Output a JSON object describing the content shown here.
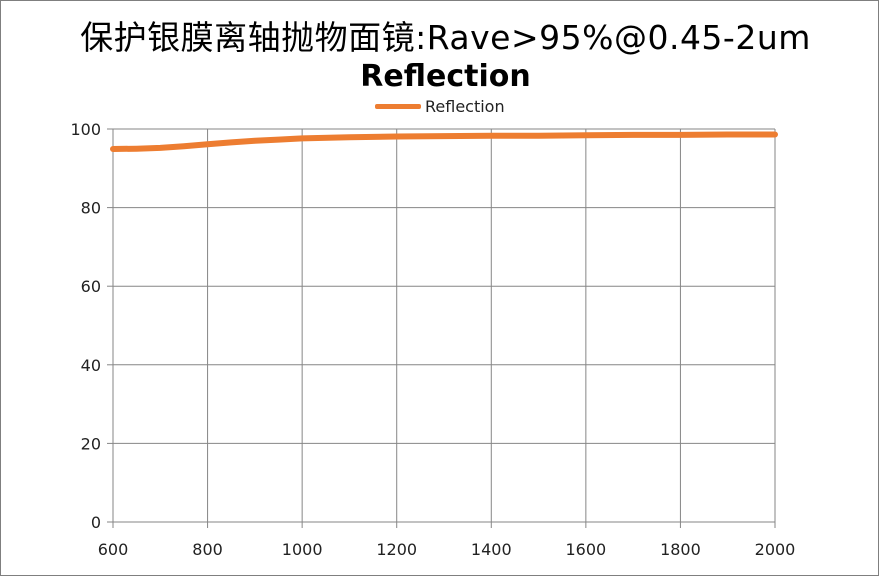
{
  "header": {
    "title": "保护银膜离轴抛物面镜:Rave>95%@0.45-2um"
  },
  "chart_data": {
    "type": "line",
    "title": "Reflection",
    "xlabel": "",
    "ylabel": "",
    "xlim": [
      600,
      2000
    ],
    "ylim": [
      0,
      100
    ],
    "x_ticks": [
      "600",
      "800",
      "1000",
      "1200",
      "1400",
      "1600",
      "1800",
      "2000"
    ],
    "y_ticks": [
      "0",
      "20",
      "40",
      "60",
      "80",
      "100"
    ],
    "grid": true,
    "legend_position": "top-center",
    "series": [
      {
        "name": "Reflection",
        "color": "#ed7d31",
        "x": [
          600,
          650,
          700,
          750,
          800,
          850,
          900,
          950,
          1000,
          1100,
          1200,
          1300,
          1400,
          1500,
          1600,
          1700,
          1800,
          1900,
          2000
        ],
        "y": [
          94.9,
          95.0,
          95.2,
          95.6,
          96.1,
          96.6,
          97.0,
          97.3,
          97.6,
          97.9,
          98.1,
          98.2,
          98.3,
          98.3,
          98.4,
          98.5,
          98.5,
          98.6,
          98.6
        ]
      }
    ]
  }
}
